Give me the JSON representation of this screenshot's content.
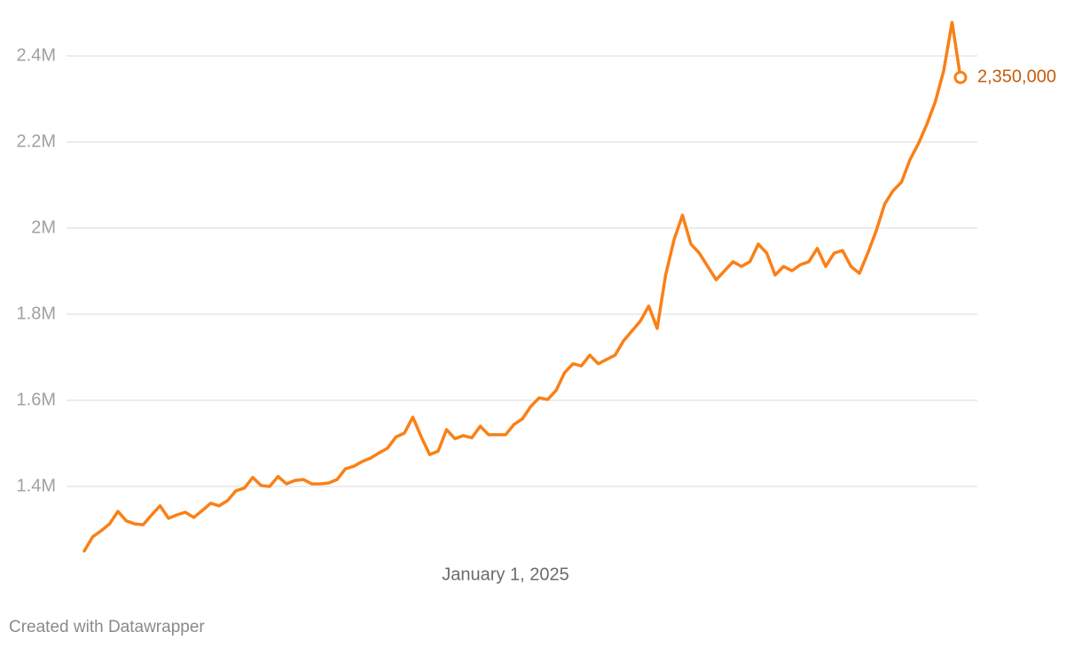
{
  "chart_data": {
    "type": "line",
    "categories": [
      null,
      null,
      null,
      null,
      null,
      null,
      null,
      null,
      null,
      null,
      null,
      null,
      null,
      null,
      null,
      null,
      null,
      null,
      null,
      null,
      null,
      null,
      null,
      null,
      null,
      null,
      null,
      null,
      null,
      null,
      null,
      null,
      null,
      null,
      null,
      null,
      null,
      null,
      null,
      null,
      null,
      null,
      null,
      null,
      null,
      null,
      null,
      null,
      null,
      null,
      "January 1, 2025",
      null,
      null,
      null,
      null,
      null,
      null,
      null,
      null,
      null,
      null,
      null,
      null,
      null,
      null,
      null,
      null,
      null,
      null,
      null,
      null,
      null,
      null,
      null,
      null,
      null,
      null,
      null,
      null,
      null,
      null,
      null,
      null,
      null,
      null,
      null,
      null,
      null,
      null,
      null,
      null,
      null,
      null,
      null,
      null,
      null,
      null,
      null,
      null,
      null,
      null,
      null,
      null,
      null,
      null
    ],
    "values": [
      1250000,
      1283000,
      1297000,
      1313000,
      1342000,
      1320000,
      1313000,
      1311000,
      1334000,
      1355000,
      1326000,
      1334000,
      1340000,
      1328000,
      1344000,
      1361000,
      1355000,
      1367000,
      1390000,
      1396000,
      1421000,
      1402000,
      1400000,
      1423000,
      1406000,
      1414000,
      1416000,
      1406000,
      1406000,
      1408000,
      1416000,
      1441000,
      1447000,
      1458000,
      1466000,
      1478000,
      1489000,
      1515000,
      1524000,
      1561000,
      1515000,
      1474000,
      1482000,
      1532000,
      1511000,
      1518000,
      1513000,
      1540000,
      1520000,
      1520000,
      1520000,
      1544000,
      1557000,
      1586000,
      1606000,
      1602000,
      1623000,
      1664000,
      1685000,
      1680000,
      1705000,
      1685000,
      1695000,
      1705000,
      1738000,
      1761000,
      1784000,
      1819000,
      1767000,
      1891000,
      1973000,
      2030000,
      1963000,
      1942000,
      1911000,
      1880000,
      1901000,
      1922000,
      1911000,
      1922000,
      1963000,
      1942000,
      1891000,
      1911000,
      1901000,
      1915000,
      1922000,
      1953000,
      1911000,
      1942000,
      1948000,
      1911000,
      1895000,
      1942000,
      1994000,
      2056000,
      2087000,
      2107000,
      2159000,
      2196000,
      2241000,
      2293000,
      2365000,
      2478000,
      2350000
    ],
    "value_labels": [
      null,
      null,
      null,
      null,
      null,
      null,
      null,
      null,
      null,
      null,
      null,
      null,
      null,
      null,
      null,
      null,
      null,
      null,
      null,
      null,
      null,
      null,
      null,
      null,
      null,
      null,
      null,
      null,
      null,
      null,
      null,
      null,
      null,
      null,
      null,
      null,
      null,
      null,
      null,
      null,
      null,
      null,
      null,
      null,
      null,
      null,
      null,
      null,
      null,
      null,
      null,
      null,
      null,
      null,
      null,
      null,
      null,
      null,
      null,
      null,
      null,
      null,
      null,
      null,
      null,
      null,
      null,
      null,
      null,
      null,
      null,
      null,
      null,
      null,
      null,
      null,
      null,
      null,
      null,
      null,
      null,
      null,
      null,
      null,
      null,
      null,
      null,
      null,
      null,
      null,
      null,
      null,
      null,
      null,
      null,
      null,
      null,
      null,
      null,
      null,
      null,
      null,
      null,
      null,
      "2,350,000"
    ],
    "color": "#fa8016",
    "label_color": "#c75b0a",
    "ylim": [
      1240000,
      2490000
    ],
    "yticks": [
      {
        "value": 1400000,
        "label": "1.4M"
      },
      {
        "value": 1600000,
        "label": "1.6M"
      },
      {
        "value": 1800000,
        "label": "1.8M"
      },
      {
        "value": 2000000,
        "label": "2M"
      },
      {
        "value": 2200000,
        "label": "2.2M"
      },
      {
        "value": 2400000,
        "label": "2.4M"
      }
    ],
    "grid": true,
    "footer": "Created with Datawrapper"
  }
}
